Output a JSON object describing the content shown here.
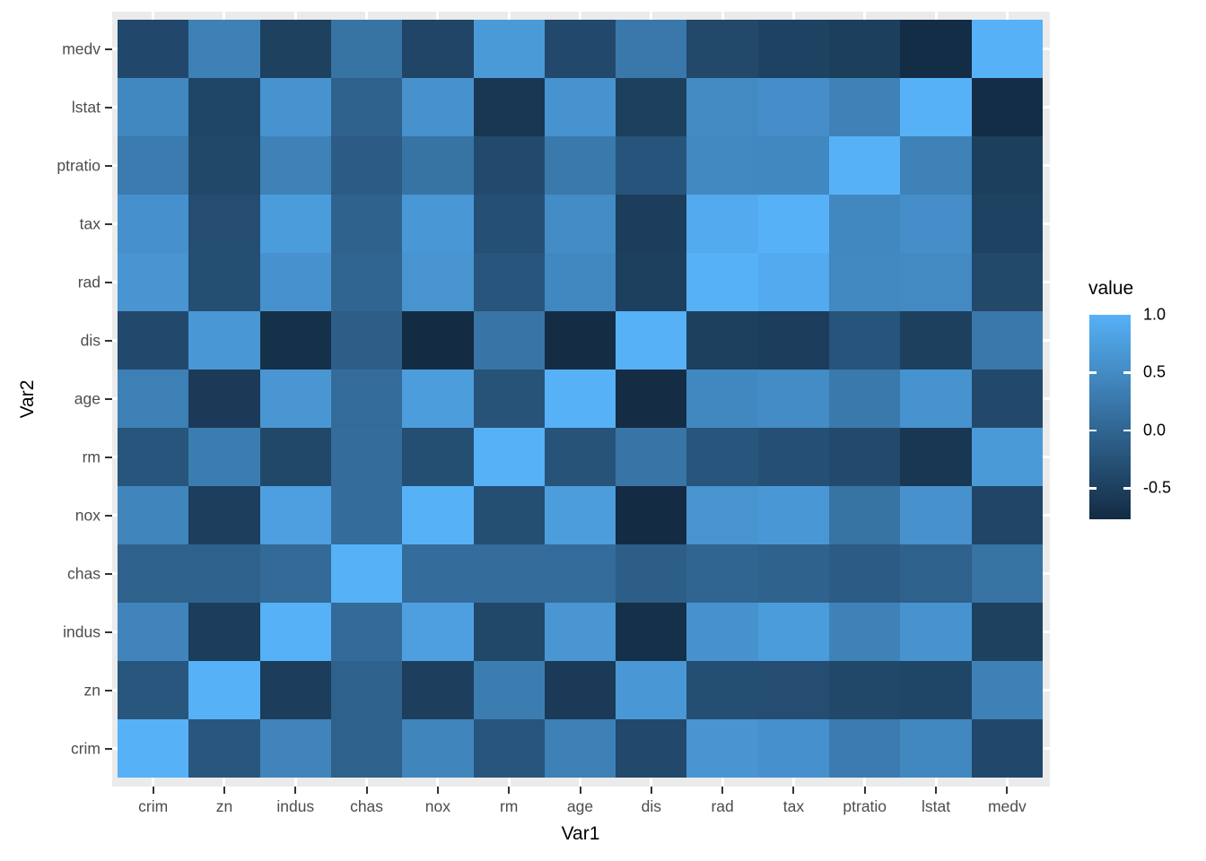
{
  "figure": {
    "background": "#FFFFFF",
    "panel_bg": "#EBEBEB",
    "gridline_color": "#FFFFFF",
    "axis_tick_color": "#333333",
    "axis_text_color": "#4D4D4D",
    "title_text_color": "#000000"
  },
  "chart_data": {
    "type": "heatmap",
    "title": "",
    "xlabel": "Var1",
    "ylabel": "Var2",
    "x_categories": [
      "crim",
      "zn",
      "indus",
      "chas",
      "nox",
      "rm",
      "age",
      "dis",
      "rad",
      "tax",
      "ptratio",
      "lstat",
      "medv"
    ],
    "y_categories": [
      "crim",
      "zn",
      "indus",
      "chas",
      "nox",
      "rm",
      "age",
      "dis",
      "rad",
      "tax",
      "ptratio",
      "lstat",
      "medv"
    ],
    "y_axis_order": "bottom-to-top (crim at bottom, medv at top)",
    "matrix_note": "matrix[i][j] = correlation(y_categories[i], x_categories[j])",
    "matrix": [
      [
        1.0,
        -0.2,
        0.407,
        -0.056,
        0.421,
        -0.219,
        0.353,
        -0.38,
        0.626,
        0.583,
        0.29,
        0.456,
        -0.388
      ],
      [
        -0.2,
        1.0,
        -0.534,
        -0.043,
        -0.517,
        0.312,
        -0.57,
        0.664,
        -0.312,
        -0.315,
        -0.392,
        -0.413,
        0.36
      ],
      [
        0.407,
        -0.534,
        1.0,
        0.063,
        0.764,
        -0.392,
        0.645,
        -0.708,
        0.595,
        0.721,
        0.383,
        0.604,
        -0.484
      ],
      [
        -0.056,
        -0.043,
        0.063,
        1.0,
        0.091,
        0.091,
        0.087,
        -0.099,
        -0.007,
        -0.036,
        -0.122,
        -0.054,
        0.175
      ],
      [
        0.421,
        -0.517,
        0.764,
        0.091,
        1.0,
        -0.302,
        0.731,
        -0.769,
        0.611,
        0.668,
        0.189,
        0.591,
        -0.427
      ],
      [
        -0.219,
        0.312,
        -0.392,
        0.091,
        -0.302,
        1.0,
        -0.24,
        0.205,
        -0.21,
        -0.292,
        -0.356,
        -0.614,
        0.695
      ],
      [
        0.353,
        -0.57,
        0.645,
        0.087,
        0.731,
        -0.24,
        1.0,
        -0.748,
        0.456,
        0.506,
        0.262,
        0.602,
        -0.377
      ],
      [
        -0.38,
        0.664,
        -0.708,
        -0.099,
        -0.769,
        0.205,
        -0.748,
        1.0,
        -0.495,
        -0.534,
        -0.232,
        -0.497,
        0.249
      ],
      [
        0.626,
        -0.312,
        0.595,
        -0.007,
        0.611,
        -0.21,
        0.456,
        -0.495,
        1.0,
        0.91,
        0.465,
        0.489,
        -0.382
      ],
      [
        0.583,
        -0.315,
        0.721,
        -0.036,
        0.668,
        -0.292,
        0.506,
        -0.534,
        0.91,
        1.0,
        0.461,
        0.544,
        -0.469
      ],
      [
        0.29,
        -0.392,
        0.383,
        -0.122,
        0.189,
        -0.356,
        0.262,
        -0.232,
        0.465,
        0.461,
        1.0,
        0.374,
        -0.508
      ],
      [
        0.456,
        -0.413,
        0.604,
        -0.054,
        0.591,
        -0.614,
        0.602,
        -0.497,
        0.489,
        0.544,
        0.374,
        1.0,
        -0.738
      ],
      [
        -0.388,
        0.36,
        -0.484,
        0.175,
        -0.427,
        0.695,
        -0.377,
        0.249,
        -0.382,
        -0.469,
        -0.508,
        -0.738,
        1.0
      ]
    ],
    "scale": {
      "low_color": "#132B43",
      "high_color": "#56B1F7",
      "domain": [
        -0.769,
        1.0
      ]
    },
    "legend": {
      "title": "value",
      "position": "right",
      "breaks": [
        1.0,
        0.5,
        0.0,
        -0.5
      ],
      "labels": [
        "1.0",
        "0.5",
        "0.0",
        "-0.5"
      ]
    },
    "grid": "major gridlines on (white), visible at panel edges",
    "axis_ranges": {
      "x": "discrete 13 categories",
      "y": "discrete 13 categories"
    }
  }
}
